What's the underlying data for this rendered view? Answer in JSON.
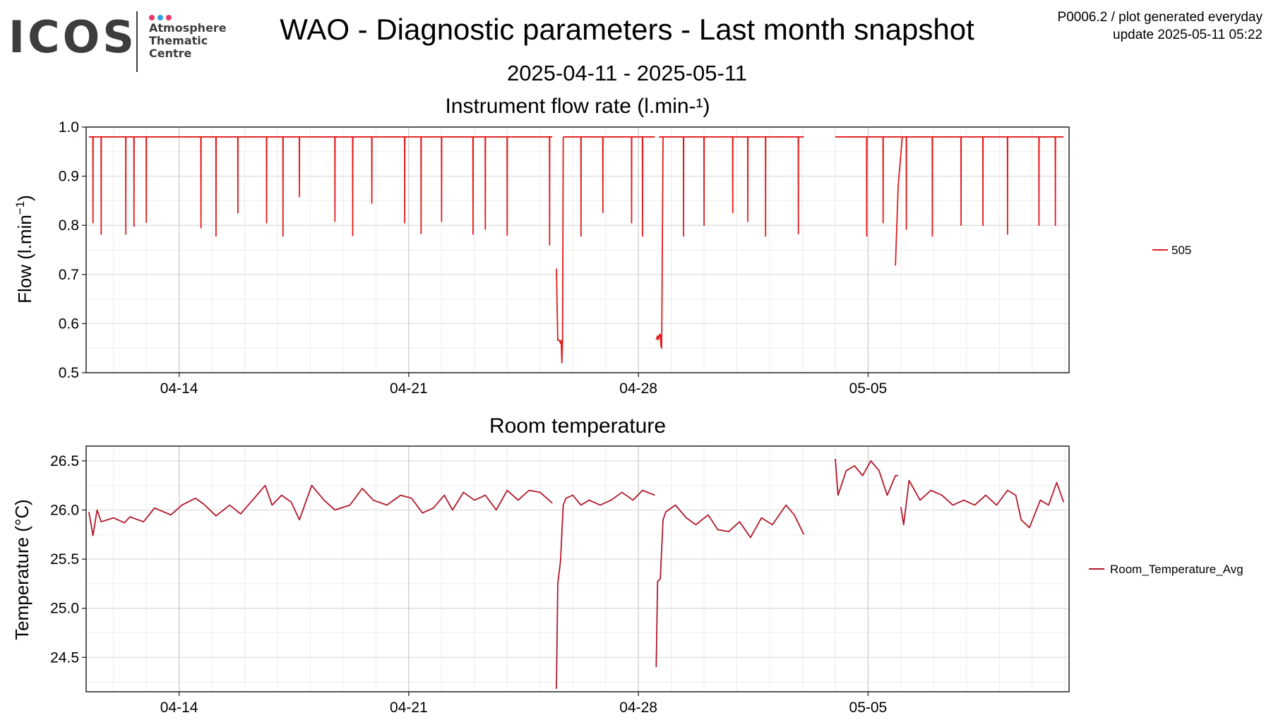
{
  "logo": {
    "wordmark": "ICOS",
    "line1": "Atmosphere",
    "line2": "Thematic",
    "line3": "Centre",
    "dot_colors": [
      "#e8386d",
      "#33a0e0",
      "#e8386d"
    ]
  },
  "header": {
    "title": "WAO - Diagnostic parameters - Last month snapshot",
    "subtitle": "2025-04-11 - 2025-05-11",
    "meta_line1": "P0006.2 / plot generated everyday",
    "meta_line2": "update  2025-05-11 05:22"
  },
  "chart_data": [
    {
      "type": "line",
      "title": "Instrument flow rate (l.min-¹)",
      "ylabel": "Flow (l.min",
      "ylabel_exponent": "−1",
      "ylabel_close": ")",
      "xlim": [
        "2025-04-11T04:00",
        "2025-05-11T03:00"
      ],
      "ylim": [
        0.5,
        1.0
      ],
      "yticks": [
        "0.5",
        "0.6",
        "0.7",
        "0.8",
        "0.9",
        "1.0"
      ],
      "xticks": [
        {
          "date": "2025-04-14",
          "label": "04-14"
        },
        {
          "date": "2025-04-21",
          "label": "04-21"
        },
        {
          "date": "2025-04-28",
          "label": "04-28"
        },
        {
          "date": "2025-05-05",
          "label": "05-05"
        }
      ],
      "grid": true,
      "legend_position": "right",
      "series": [
        {
          "name": "505",
          "color": "#e31a1c",
          "base": 0.98,
          "segments": [
            [
              "2025-04-11T06:00",
              "2025-04-25T09:00"
            ],
            [
              "2025-04-25T17:00",
              "2025-04-28T12:00"
            ],
            [
              "2025-04-28T15:00",
              "2025-05-03T01:00"
            ],
            [
              "2025-05-04T00:00",
              "2025-05-10T23:00"
            ]
          ],
          "dips": [
            [
              "2025-04-11T09:00",
              0.805
            ],
            [
              "2025-04-11T15:00",
              0.782
            ],
            [
              "2025-04-12T09:00",
              0.782
            ],
            [
              "2025-04-12T15:00",
              0.798
            ],
            [
              "2025-04-13T00:00",
              0.806
            ],
            [
              "2025-04-14T16:00",
              0.795
            ],
            [
              "2025-04-15T03:00",
              0.778
            ],
            [
              "2025-04-15T19:00",
              0.825
            ],
            [
              "2025-04-16T16:00",
              0.805
            ],
            [
              "2025-04-17T04:00",
              0.778
            ],
            [
              "2025-04-17T16:00",
              0.858
            ],
            [
              "2025-04-18T18:00",
              0.808
            ],
            [
              "2025-04-19T07:00",
              0.779
            ],
            [
              "2025-04-19T21:00",
              0.845
            ],
            [
              "2025-04-20T21:00",
              0.805
            ],
            [
              "2025-04-21T09:00",
              0.783
            ],
            [
              "2025-04-22T00:00",
              0.808
            ],
            [
              "2025-04-22T23:00",
              0.782
            ],
            [
              "2025-04-23T08:00",
              0.792
            ],
            [
              "2025-04-24T00:00",
              0.78
            ],
            [
              "2025-04-25T07:00",
              0.76
            ],
            [
              "2025-04-26T06:00",
              0.778
            ],
            [
              "2025-04-26T22:00",
              0.826
            ],
            [
              "2025-04-27T19:00",
              0.805
            ],
            [
              "2025-04-28T03:00",
              0.778
            ],
            [
              "2025-04-29T09:00",
              0.778
            ],
            [
              "2025-04-30T00:00",
              0.8
            ],
            [
              "2025-04-30T21:00",
              0.826
            ],
            [
              "2025-05-01T08:00",
              0.808
            ],
            [
              "2025-05-01T21:00",
              0.778
            ],
            [
              "2025-05-02T21:00",
              0.783
            ],
            [
              "2025-05-04T23:00",
              0.778
            ],
            [
              "2025-05-05T11:00",
              0.805
            ],
            [
              "2025-05-06T04:00",
              0.792
            ],
            [
              "2025-05-06T23:00",
              0.778
            ],
            [
              "2025-05-07T20:00",
              0.8
            ],
            [
              "2025-05-08T12:00",
              0.8
            ],
            [
              "2025-05-09T06:00",
              0.782
            ],
            [
              "2025-05-10T05:00",
              0.8
            ],
            [
              "2025-05-10T17:00",
              0.8
            ]
          ],
          "drops": [
            {
              "x": [
                "2025-04-25T12:00",
                "2025-04-25T13:00",
                "2025-04-25T14:00",
                "2025-04-25T15:00",
                "2025-04-25T15:30",
                "2025-04-25T16:00",
                "2025-04-25T16:30",
                "2025-04-25T17:00"
              ],
              "y": [
                0.712,
                0.566,
                0.566,
                0.56,
                0.566,
                0.52,
                0.566,
                0.98
              ]
            },
            {
              "x": [
                "2025-04-28T13:00",
                "2025-04-28T14:00",
                "2025-04-28T14:30",
                "2025-04-28T15:30",
                "2025-04-28T16:00",
                "2025-04-28T16:30",
                "2025-04-28T17:00",
                "2025-04-28T18:00"
              ],
              "y": [
                0.567,
                0.575,
                0.567,
                0.578,
                0.578,
                0.555,
                0.55,
                0.98
              ]
            },
            {
              "x": [
                "2025-05-05T20:00",
                "2025-05-05T22:00",
                "2025-05-06T01:00"
              ],
              "y": [
                0.718,
                0.88,
                0.98
              ]
            }
          ]
        }
      ]
    },
    {
      "type": "line",
      "title": "Room temperature",
      "ylabel": "Temperature (°C)",
      "xlim": [
        "2025-04-11T04:00",
        "2025-05-11T03:00"
      ],
      "ylim": [
        24.15,
        26.65
      ],
      "yticks": [
        "24.5",
        "25.0",
        "25.5",
        "26.0",
        "26.5"
      ],
      "xticks": [
        {
          "date": "2025-04-14",
          "label": "04-14"
        },
        {
          "date": "2025-04-21",
          "label": "04-21"
        },
        {
          "date": "2025-04-28",
          "label": "04-28"
        },
        {
          "date": "2025-05-05",
          "label": "05-05"
        }
      ],
      "grid": true,
      "legend_position": "right",
      "series": [
        {
          "name": "Room_Temperature_Avg",
          "color": "#b2182b",
          "segments": [
            {
              "x": [
                "2025-04-11T06:00",
                "2025-04-11T09:00",
                "2025-04-11T12:00",
                "2025-04-11T15:00",
                "2025-04-12T00:00",
                "2025-04-12T08:00",
                "2025-04-12T12:00",
                "2025-04-12T22:00",
                "2025-04-13T06:00",
                "2025-04-13T18:00",
                "2025-04-14T02:00",
                "2025-04-14T12:00",
                "2025-04-14T18:00",
                "2025-04-15T03:00",
                "2025-04-15T13:00",
                "2025-04-15T21:00",
                "2025-04-16T07:00",
                "2025-04-16T15:00",
                "2025-04-16T20:00",
                "2025-04-17T03:00",
                "2025-04-17T10:00",
                "2025-04-17T16:00",
                "2025-04-18T01:00",
                "2025-04-18T10:00",
                "2025-04-18T18:00",
                "2025-04-19T05:00",
                "2025-04-19T14:00",
                "2025-04-19T22:00",
                "2025-04-20T08:00",
                "2025-04-20T18:00",
                "2025-04-21T02:00",
                "2025-04-21T10:00",
                "2025-04-21T18:00",
                "2025-04-22T02:00",
                "2025-04-22T08:00",
                "2025-04-22T16:00",
                "2025-04-23T00:00",
                "2025-04-23T08:00",
                "2025-04-23T16:00",
                "2025-04-24T00:00",
                "2025-04-24T08:00",
                "2025-04-24T16:00",
                "2025-04-25T00:00",
                "2025-04-25T09:00"
              ],
              "y": [
                25.98,
                25.74,
                26.0,
                25.88,
                25.92,
                25.87,
                25.93,
                25.88,
                26.02,
                25.95,
                26.05,
                26.12,
                26.06,
                25.94,
                26.05,
                25.96,
                26.12,
                26.25,
                26.05,
                26.15,
                26.08,
                25.9,
                26.25,
                26.1,
                26.0,
                26.05,
                26.22,
                26.1,
                26.05,
                26.15,
                26.12,
                25.97,
                26.02,
                26.15,
                26.0,
                26.18,
                26.1,
                26.15,
                26.0,
                26.2,
                26.1,
                26.2,
                26.18,
                26.07
              ]
            },
            {
              "x": [
                "2025-04-25T12:00",
                "2025-04-25T13:00",
                "2025-04-25T15:00",
                "2025-04-25T17:00",
                "2025-04-25T19:00",
                "2025-04-26T00:00",
                "2025-04-26T06:00",
                "2025-04-26T12:00",
                "2025-04-26T20:00",
                "2025-04-27T04:00",
                "2025-04-27T12:00",
                "2025-04-27T20:00",
                "2025-04-28T03:00",
                "2025-04-28T12:00"
              ],
              "y": [
                24.18,
                25.25,
                25.48,
                26.05,
                26.12,
                26.15,
                26.05,
                26.1,
                26.05,
                26.1,
                26.18,
                26.1,
                26.2,
                26.15
              ]
            },
            {
              "x": [
                "2025-04-28T13:00",
                "2025-04-28T14:00",
                "2025-04-28T16:00",
                "2025-04-28T18:00",
                "2025-04-28T20:00",
                "2025-04-29T03:00",
                "2025-04-29T11:00",
                "2025-04-29T18:00",
                "2025-04-30T03:00",
                "2025-04-30T10:00",
                "2025-04-30T18:00",
                "2025-05-01T02:00",
                "2025-05-01T10:00",
                "2025-05-01T18:00",
                "2025-05-02T02:00",
                "2025-05-02T12:00",
                "2025-05-02T18:00",
                "2025-05-03T01:00"
              ],
              "y": [
                24.4,
                25.27,
                25.3,
                25.9,
                25.98,
                26.05,
                25.92,
                25.85,
                25.95,
                25.8,
                25.78,
                25.88,
                25.72,
                25.92,
                25.85,
                26.05,
                25.95,
                25.75
              ]
            },
            {
              "x": [
                "2025-05-04T00:00",
                "2025-05-04T02:00",
                "2025-05-04T08:00",
                "2025-05-04T14:00",
                "2025-05-04T20:00",
                "2025-05-05T02:00",
                "2025-05-05T08:00",
                "2025-05-05T14:00",
                "2025-05-05T20:00",
                "2025-05-05T22:00"
              ],
              "y": [
                26.52,
                26.15,
                26.4,
                26.45,
                26.35,
                26.5,
                26.4,
                26.15,
                26.35,
                26.35
              ]
            },
            {
              "x": [
                "2025-05-06T00:00",
                "2025-05-06T02:00",
                "2025-05-06T06:00",
                "2025-05-06T14:00",
                "2025-05-06T22:00",
                "2025-05-07T06:00",
                "2025-05-07T14:00",
                "2025-05-07T22:00",
                "2025-05-08T06:00",
                "2025-05-08T14:00",
                "2025-05-08T22:00",
                "2025-05-09T06:00",
                "2025-05-09T12:00",
                "2025-05-09T16:00",
                "2025-05-09T22:00",
                "2025-05-10T06:00",
                "2025-05-10T12:00",
                "2025-05-10T18:00",
                "2025-05-10T23:00"
              ],
              "y": [
                26.03,
                25.85,
                26.3,
                26.1,
                26.2,
                26.15,
                26.05,
                26.1,
                26.05,
                26.15,
                26.05,
                26.2,
                26.15,
                25.9,
                25.82,
                26.1,
                26.05,
                26.28,
                26.08
              ]
            }
          ]
        }
      ]
    }
  ]
}
